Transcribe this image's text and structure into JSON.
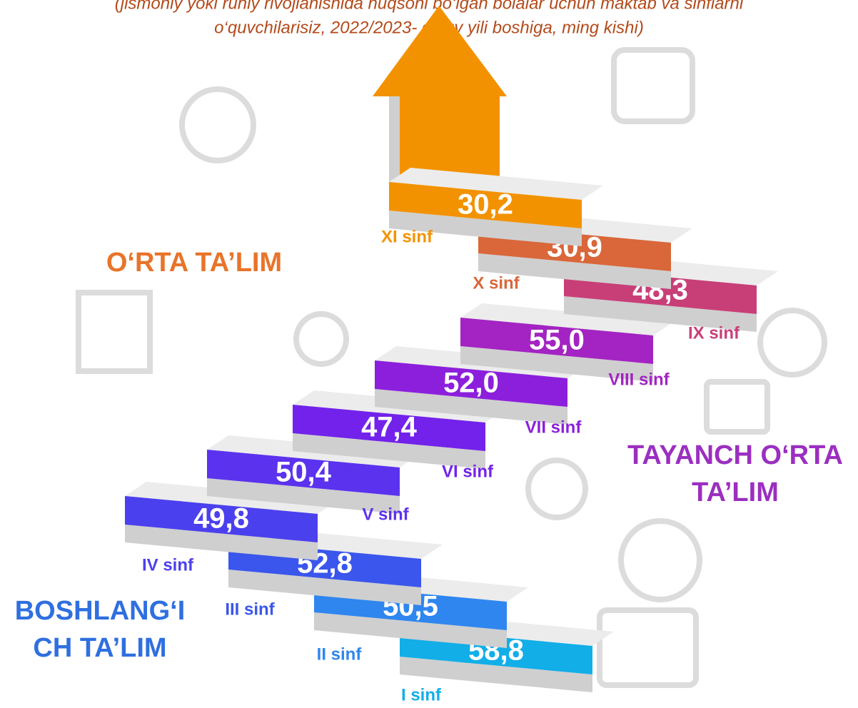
{
  "subtitle": [
    "(jismoniy yoki ruhiy rivojlanishida nuqsoni bo‘lgan bolalar uchun maktab va sinflarni",
    "o‘quvchilarisiz, 2022/2023- o‘quv yili boshiga, ming kishi)"
  ],
  "sections": [
    {
      "lines": [
        "O‘RTA TA’LIM"
      ],
      "color": "#e8742a"
    },
    {
      "lines": [
        "TAYANCH O‘RTA",
        "TA’LIM"
      ],
      "color": "#9b2fc0"
    },
    {
      "lines": [
        "BOSHLANG‘I",
        "CH TA’LIM"
      ],
      "color": "#2f6fe0"
    }
  ],
  "steps": [
    {
      "grade": "I sinf",
      "value": "58,8",
      "color": "#12aee8"
    },
    {
      "grade": "II sinf",
      "value": "50,5",
      "color": "#2f86ee"
    },
    {
      "grade": "III sinf",
      "value": "52,8",
      "color": "#3a56ec"
    },
    {
      "grade": "IV sinf",
      "value": "49,8",
      "color": "#4b40ee"
    },
    {
      "grade": "V sinf",
      "value": "50,4",
      "color": "#5b32ee"
    },
    {
      "grade": "VI sinf",
      "value": "47,4",
      "color": "#7222ea"
    },
    {
      "grade": "VII sinf",
      "value": "52,0",
      "color": "#8c1fdc"
    },
    {
      "grade": "VIII sinf",
      "value": "55,0",
      "color": "#a324c2"
    },
    {
      "grade": "IX sinf",
      "value": "48,3",
      "color": "#c83f78"
    },
    {
      "grade": "X sinf",
      "value": "30,9",
      "color": "#d9673a"
    },
    {
      "grade": "XI sinf",
      "value": "30,2",
      "color": "#f39200"
    }
  ]
}
